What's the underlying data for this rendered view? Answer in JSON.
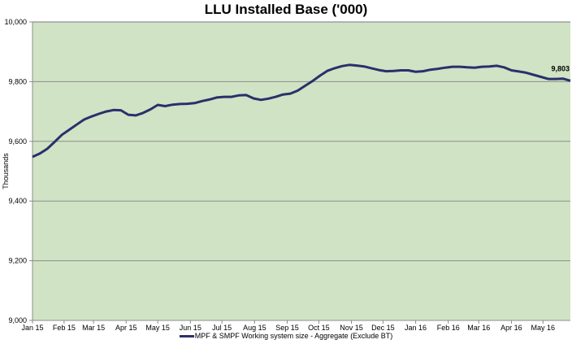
{
  "chart_data": {
    "type": "line",
    "title": "LLU Installed Base ('000)",
    "xlabel": "",
    "ylabel": "Thousands",
    "ylim": [
      9000,
      10000
    ],
    "yticks": [
      9000,
      9200,
      9400,
      9600,
      9800,
      10000
    ],
    "ytick_labels": [
      "9,000",
      "9,200",
      "9,400",
      "9,600",
      "9,800",
      "10,000"
    ],
    "xlim": [
      "2015-01-02",
      "2016-05-27"
    ],
    "xtick_labels": [
      "Jan 15",
      "Feb 15",
      "Mar 15",
      "Apr 15",
      "May 15",
      "Jun 15",
      "Jul 15",
      "Aug 15",
      "Sep 15",
      "Oct 15",
      "Nov 15",
      "Dec 15",
      "Jan 16",
      "Feb 16",
      "Mar 16",
      "Apr 16",
      "May 16"
    ],
    "xtick_dates": [
      "2015-01-01",
      "2015-02-01",
      "2015-03-01",
      "2015-04-01",
      "2015-05-01",
      "2015-06-01",
      "2015-07-01",
      "2015-08-01",
      "2015-09-01",
      "2015-10-01",
      "2015-11-01",
      "2015-12-01",
      "2016-01-01",
      "2016-02-01",
      "2016-03-01",
      "2016-04-01",
      "2016-05-01"
    ],
    "grid": "horizontal",
    "background": "#d0e3c4",
    "legend_position": "bottom",
    "series": [
      {
        "name": "MPF & SMPF Working system size - Aggregate (Exclude BT)",
        "color": "#2b2f6b",
        "x": [
          "2015-01-02",
          "2015-01-09",
          "2015-01-16",
          "2015-01-23",
          "2015-01-30",
          "2015-02-06",
          "2015-02-13",
          "2015-02-20",
          "2015-02-27",
          "2015-03-06",
          "2015-03-13",
          "2015-03-20",
          "2015-03-27",
          "2015-04-03",
          "2015-04-10",
          "2015-04-17",
          "2015-04-24",
          "2015-05-01",
          "2015-05-08",
          "2015-05-15",
          "2015-05-22",
          "2015-05-29",
          "2015-06-05",
          "2015-06-12",
          "2015-06-19",
          "2015-06-26",
          "2015-07-03",
          "2015-07-10",
          "2015-07-17",
          "2015-07-24",
          "2015-07-31",
          "2015-08-07",
          "2015-08-14",
          "2015-08-21",
          "2015-08-28",
          "2015-09-04",
          "2015-09-11",
          "2015-09-18",
          "2015-09-25",
          "2015-10-02",
          "2015-10-09",
          "2015-10-16",
          "2015-10-23",
          "2015-10-30",
          "2015-11-06",
          "2015-11-13",
          "2015-11-20",
          "2015-11-27",
          "2015-12-04",
          "2015-12-11",
          "2015-12-18",
          "2015-12-25",
          "2016-01-01",
          "2016-01-08",
          "2016-01-15",
          "2016-01-22",
          "2016-01-29",
          "2016-02-05",
          "2016-02-12",
          "2016-02-19",
          "2016-02-26",
          "2016-03-04",
          "2016-03-11",
          "2016-03-18",
          "2016-03-25",
          "2016-04-01",
          "2016-04-08",
          "2016-04-15",
          "2016-04-22",
          "2016-04-29",
          "2016-05-06",
          "2016-05-13",
          "2016-05-20",
          "2016-05-27"
        ],
        "y": [
          9548,
          9559,
          9575,
          9598,
          9622,
          9639,
          9656,
          9673,
          9683,
          9692,
          9700,
          9705,
          9704,
          9689,
          9687,
          9695,
          9707,
          9722,
          9718,
          9723,
          9725,
          9726,
          9728,
          9735,
          9740,
          9747,
          9749,
          9749,
          9754,
          9755,
          9744,
          9739,
          9743,
          9749,
          9757,
          9760,
          9770,
          9786,
          9802,
          9820,
          9836,
          9845,
          9852,
          9856,
          9854,
          9851,
          9845,
          9839,
          9835,
          9836,
          9838,
          9838,
          9833,
          9835,
          9840,
          9843,
          9847,
          9850,
          9850,
          9848,
          9847,
          9850,
          9851,
          9853,
          9848,
          9838,
          9834,
          9830,
          9823,
          9816,
          9809,
          9809,
          9810,
          9803
        ]
      }
    ],
    "annotations": [
      {
        "text": "9,803",
        "x": "2016-05-27",
        "y": 9803
      }
    ]
  }
}
